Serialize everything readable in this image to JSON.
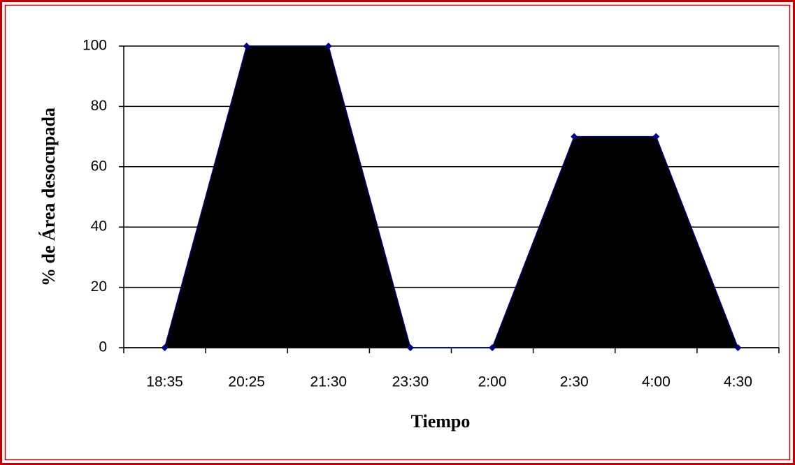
{
  "chart_data": {
    "type": "area",
    "x_label": "Tiempo",
    "y_label": "% de Área desocupada",
    "categories": [
      "18:35",
      "20:25",
      "21:30",
      "23:30",
      "2:00",
      "2:30",
      "4:00",
      "4:30"
    ],
    "values": [
      0,
      100,
      100,
      0,
      0,
      70,
      70,
      0
    ],
    "color": "#000000",
    "line_color": "#000080",
    "ylim": [
      0,
      100
    ],
    "yticks": [
      0,
      20,
      40,
      60,
      80,
      100
    ],
    "grid": true
  }
}
